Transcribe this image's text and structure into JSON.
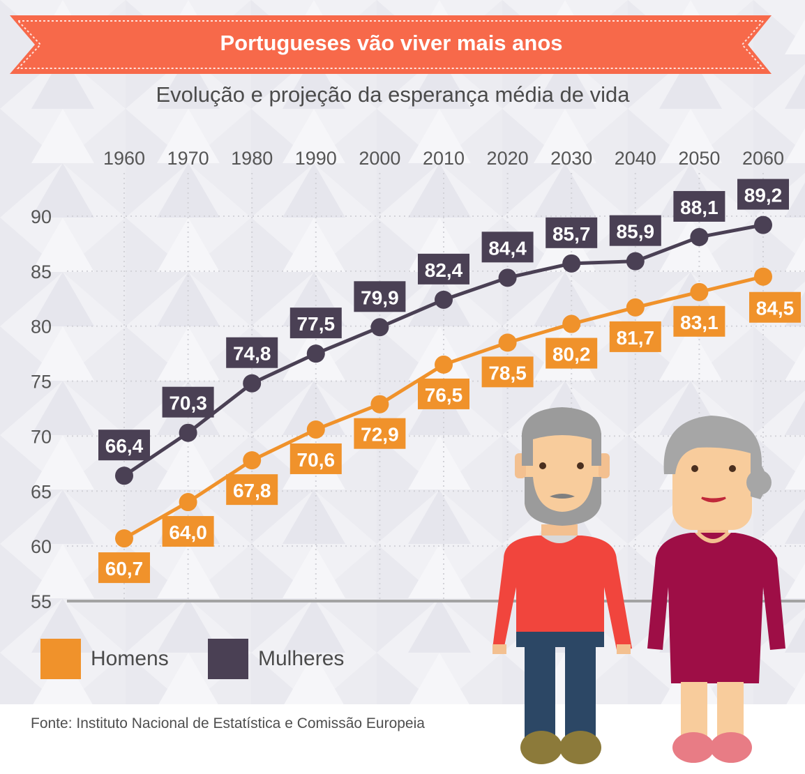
{
  "header": {
    "title": "Portugueses vão viver mais anos",
    "subtitle": "Evolução e projeção da esperança média de vida"
  },
  "colors": {
    "banner": "#f7694a",
    "homens": "#f0922b",
    "mulheres": "#4a4054",
    "axis_text": "#555555"
  },
  "chart_data": {
    "type": "line",
    "title": "Portugueses vão viver mais anos",
    "subtitle": "Evolução e projeção da esperança média de vida",
    "x": [
      "1960",
      "1970",
      "1980",
      "1990",
      "2000",
      "2010",
      "2020",
      "2030",
      "2040",
      "2050",
      "2060"
    ],
    "yticks": [
      "55",
      "60",
      "65",
      "70",
      "75",
      "80",
      "85",
      "90"
    ],
    "ylim": [
      55,
      90
    ],
    "grid": true,
    "legend_position": "bottom-left",
    "series": [
      {
        "name": "Homens",
        "values": [
          60.7,
          64.0,
          67.8,
          70.6,
          72.9,
          76.5,
          78.5,
          80.2,
          81.7,
          83.1,
          84.5
        ],
        "labels": [
          "60,7",
          "64,0",
          "67,8",
          "70,6",
          "72,9",
          "76,5",
          "78,5",
          "80,2",
          "81,7",
          "83,1",
          "84,5"
        ]
      },
      {
        "name": "Mulheres",
        "values": [
          66.4,
          70.3,
          74.8,
          77.5,
          79.9,
          82.4,
          84.4,
          85.7,
          85.9,
          88.1,
          89.2
        ],
        "labels": [
          "66,4",
          "70,3",
          "74,8",
          "77,5",
          "79,9",
          "82,4",
          "84,4",
          "85,7",
          "85,9",
          "88,1",
          "89,2"
        ]
      }
    ]
  },
  "legend": {
    "homens_label": "Homens",
    "mulheres_label": "Mulheres"
  },
  "footer": {
    "source": "Fonte: Instituto Nacional de Estatística e Comissão Europeia"
  },
  "illustration": {
    "man_icon": "elderly-man-icon",
    "woman_icon": "elderly-woman-icon"
  }
}
